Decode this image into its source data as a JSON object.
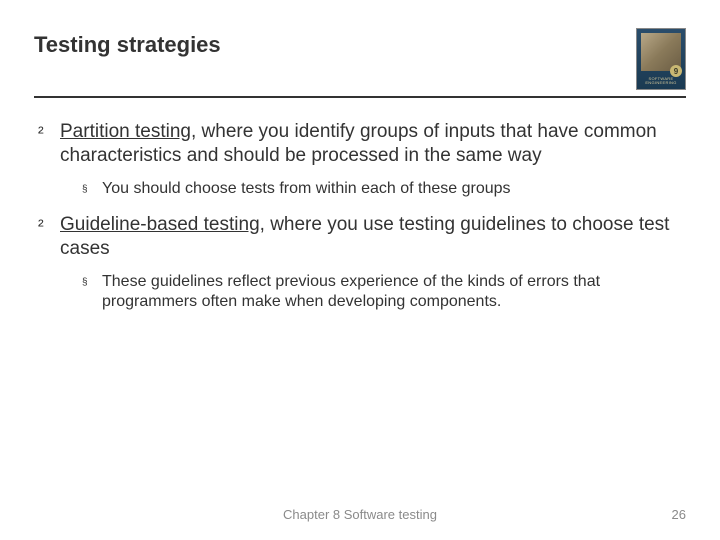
{
  "slide": {
    "title": "Testing strategies",
    "book": {
      "edition": "9",
      "label": "SOFTWARE ENGINEERING"
    },
    "bullets": [
      {
        "underlined": "Partition testing",
        "rest": ", where you identify groups of inputs that have common characteristics and should be processed in the same way",
        "sub": [
          "You should choose tests from within each of these groups"
        ]
      },
      {
        "underlined": "Guideline-based testing",
        "rest": ", where you use testing guidelines to choose test cases",
        "sub": [
          "These guidelines reflect previous experience of the kinds of errors that programmers often make when developing components."
        ]
      }
    ],
    "footer": "Chapter 8 Software testing",
    "page_number": "26"
  },
  "colors": {
    "text": "#333333",
    "footer": "#8a8a8a",
    "rule": "#333333",
    "background": "#ffffff"
  },
  "markers": {
    "level1": "²",
    "level2": "§"
  }
}
